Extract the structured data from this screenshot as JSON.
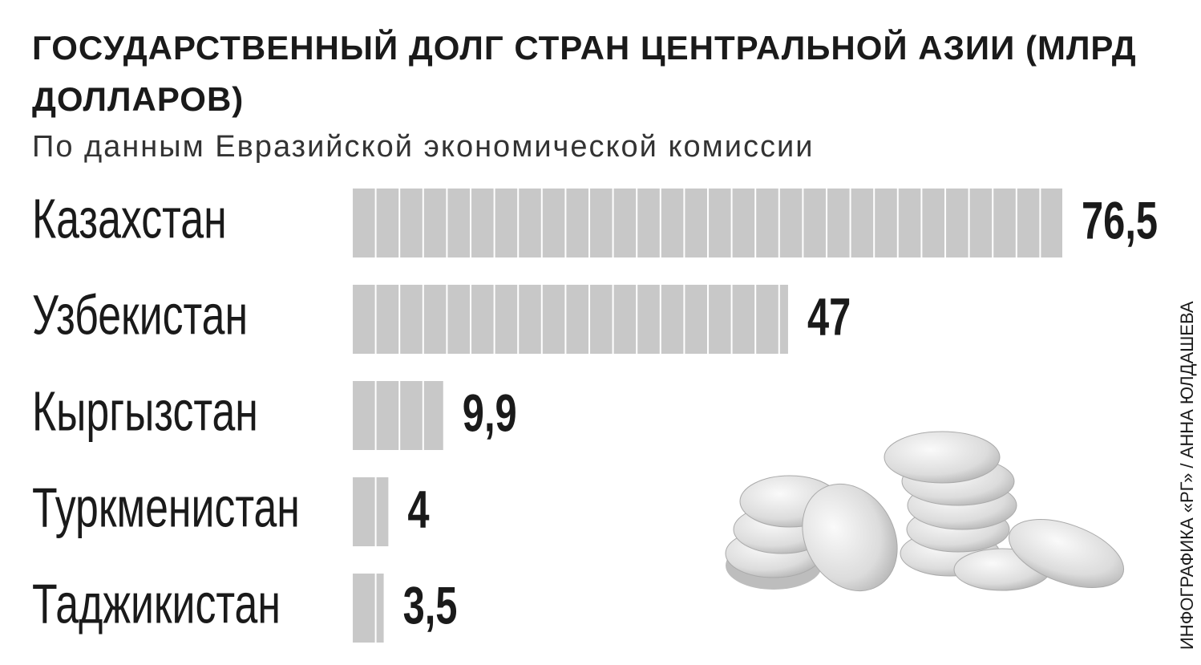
{
  "chart_data": {
    "type": "bar",
    "title": "ГОСУДАРСТВЕННЫЙ ДОЛГ СТРАН ЦЕНТРАЛЬНОЙ АЗИИ (МЛРД ДОЛЛАРОВ)",
    "subtitle": "По данным Евразийской экономической комиссии",
    "categories": [
      "Казахстан",
      "Узбекистан",
      "Кыргызстан",
      "Туркменистан",
      "Таджикистан"
    ],
    "values": [
      76.5,
      47,
      9.9,
      4,
      3.5
    ],
    "value_labels": [
      "76,5",
      "47",
      "9,9",
      "4",
      "3,5"
    ],
    "color": "#c8c8c8",
    "credit": "ИНФОГРАФИКА «РГ» / АННА ЮЛДАШЕВА"
  }
}
